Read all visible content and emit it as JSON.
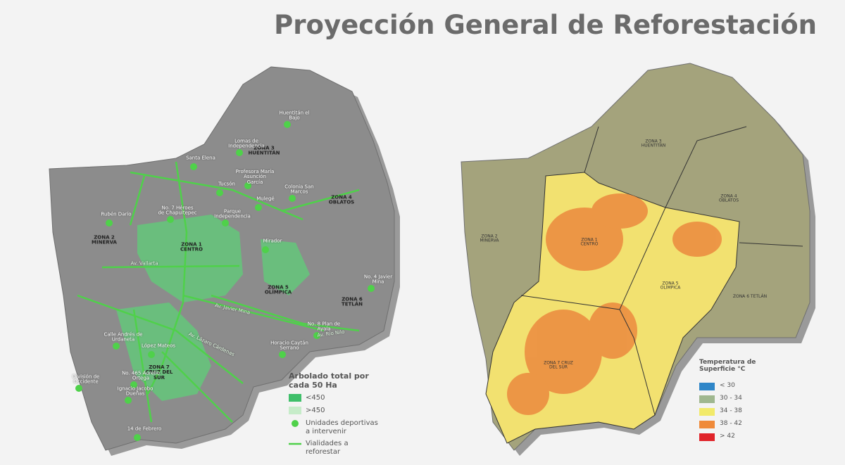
{
  "title": "Proyección General de Reforestación",
  "left_map": {
    "zones": [
      "ZONA 3 HUENTITÁN",
      "ZONA 4 OBLATOS",
      "ZONA 2 MINERVA",
      "ZONA 1 CENTRO",
      "ZONA 5 OLÍMPICA",
      "ZONA 6 TETLÁN",
      "ZONA 7 CRUZ DEL SUR"
    ],
    "places": [
      "Huentitán el Bajo",
      "Lomas de Independencia",
      "Santa Elena",
      "Profesora María Asunción García",
      "Tucsón",
      "Colonia San Marcos",
      "Mulegé",
      "No. 7 Héroes de Chapultepec",
      "Parque Independencia",
      "Rubén Darío",
      "Mirador",
      "No. 4 Javier Mina",
      "No. 8 Plan de Ayala",
      "Horacio Caytán Serrano",
      "Calle Andrés de Urdaneta",
      "López Mateos",
      "División de Occidente",
      "No. 465 Aurelio Ortega",
      "Ignacio Jacobo Dueñas",
      "14 de Febrero"
    ],
    "streets": [
      "Av. Vallarta",
      "Av. Javier Mina",
      "Av. Lázaro Cárdenas",
      "Av. Río Nilo"
    ],
    "legend": {
      "title": "Arbolado total por cada 50 Ha",
      "items": [
        {
          "label": "<450",
          "color": "#3fbf6a"
        },
        {
          "label": ">450",
          "color": "#c6ecc9"
        },
        {
          "label": "Unidades deportivas a intervenir",
          "color": "#4fd14a"
        },
        {
          "label": "Vialidades a reforestar",
          "color": "#4fd14a"
        }
      ]
    }
  },
  "right_map": {
    "zones": [
      "ZONA 3 HUENTITÁN",
      "ZONA 4 OBLATOS",
      "ZONA 2 MINERVA",
      "ZONA 1 CENTRO",
      "ZONA 5 OLÍMPICA",
      "ZONA 6 TETLÁN",
      "ZONA 7 CRUZ DEL SUR"
    ],
    "legend": {
      "title": "Temperatura de Superficie °C",
      "items": [
        {
          "label": "< 30",
          "color": "#2f86c8"
        },
        {
          "label": "30 - 34",
          "color": "#9fb78f"
        },
        {
          "label": "34 - 38",
          "color": "#f2ea6a"
        },
        {
          "label": "38 - 42",
          "color": "#ef8a3a"
        },
        {
          "label": "> 42",
          "color": "#e0242a"
        }
      ]
    }
  }
}
